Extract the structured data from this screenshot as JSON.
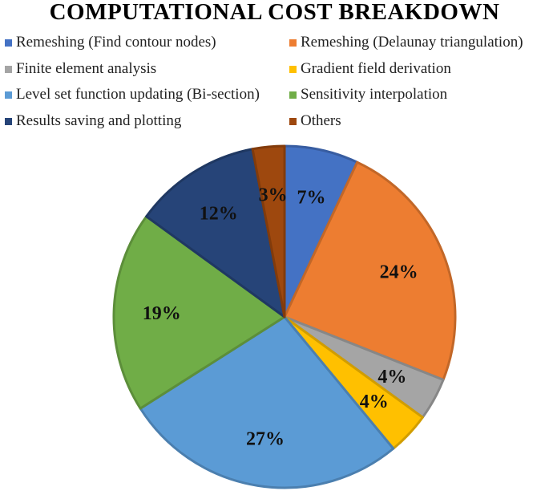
{
  "chart_data": {
    "type": "pie",
    "title": "COMPUTATIONAL COST BREAKDOWN",
    "legend_position": "top",
    "slices": [
      {
        "name": "Remeshing (Find contour nodes)",
        "value": 7,
        "label": "7%",
        "color": "#4472C4"
      },
      {
        "name": "Remeshing (Delaunay triangulation)",
        "value": 24,
        "label": "24%",
        "color": "#ED7D31"
      },
      {
        "name": "Finite element analysis",
        "value": 4,
        "label": "4%",
        "color": "#A5A5A5"
      },
      {
        "name": "Gradient field derivation",
        "value": 4,
        "label": "4%",
        "color": "#FFC000"
      },
      {
        "name": "Level set function updating (Bi-section)",
        "value": 27,
        "label": "27%",
        "color": "#5B9BD5"
      },
      {
        "name": "Sensitivity interpolation",
        "value": 19,
        "label": "19%",
        "color": "#70AD47"
      },
      {
        "name": "Results saving and plotting",
        "value": 12,
        "label": "12%",
        "color": "#264478"
      },
      {
        "name": "Others",
        "value": 3,
        "label": "3%",
        "color": "#9E480E"
      }
    ]
  }
}
